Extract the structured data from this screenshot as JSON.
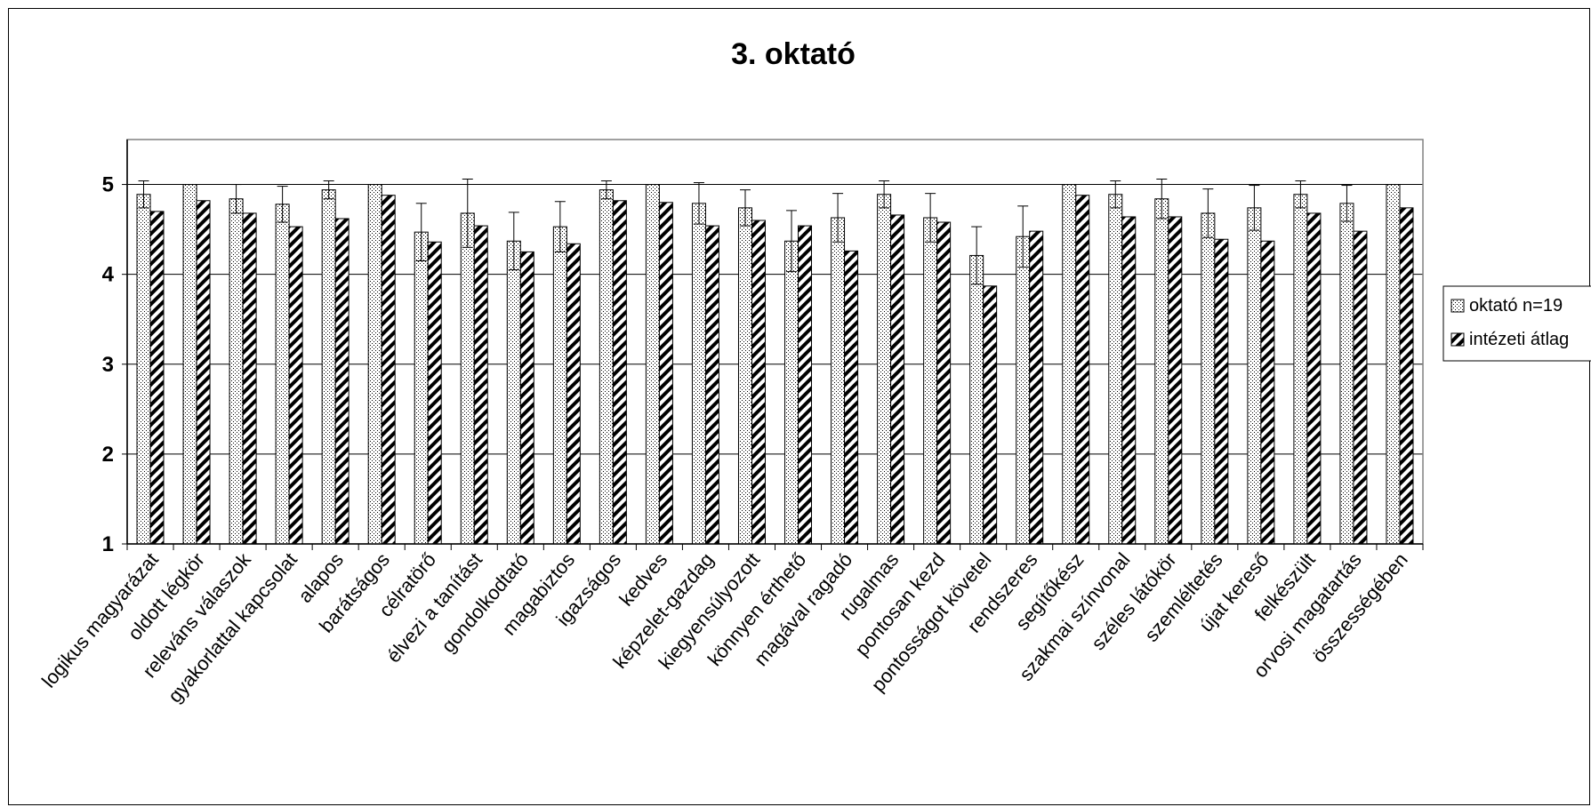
{
  "chart_data": {
    "type": "bar",
    "title": "3. oktató",
    "xlabel": "",
    "ylabel": "",
    "ylim": [
      1,
      5.5
    ],
    "yticks": [
      1,
      2,
      3,
      4,
      5
    ],
    "grid": true,
    "legend_position": "right",
    "categories": [
      "logikus magyarázat",
      "oldott légkör",
      "releváns válaszok",
      "gyakorlattal kapcsolat",
      "alapos",
      "barátságos",
      "célratörő",
      "élvezi a tanítást",
      "gondolkodtató",
      "magabiztos",
      "igazságos",
      "kedves",
      "képzelet-gazdag",
      "kiegyensúlyozott",
      "könnyen érthető",
      "magával ragadó",
      "rugalmas",
      "pontosan kezd",
      "pontosságot követel",
      "rendszeres",
      "segítőkész",
      "szakmai színvonal",
      "széles látókör",
      "szemléltetés",
      "újat kereső",
      "felkészült",
      "orvosi magatartás",
      "összességében"
    ],
    "series": [
      {
        "name": "oktató n=19",
        "pattern": "dots",
        "values": [
          4.89,
          5.0,
          4.84,
          4.78,
          4.94,
          5.0,
          4.47,
          4.68,
          4.37,
          4.53,
          4.94,
          5.0,
          4.79,
          4.74,
          4.37,
          4.63,
          4.89,
          4.63,
          4.21,
          4.42,
          5.0,
          4.89,
          4.84,
          4.68,
          4.74,
          4.89,
          4.79,
          5.0
        ],
        "error": [
          0.15,
          0,
          0.16,
          0.2,
          0.1,
          0,
          0.32,
          0.38,
          0.32,
          0.28,
          0.1,
          0,
          0.23,
          0.2,
          0.34,
          0.27,
          0.15,
          0.27,
          0.32,
          0.34,
          0,
          0.15,
          0.22,
          0.27,
          0.25,
          0.15,
          0.2,
          0
        ]
      },
      {
        "name": "intézeti átlag",
        "pattern": "diagonal",
        "values": [
          4.7,
          4.82,
          4.68,
          4.53,
          4.62,
          4.88,
          4.36,
          4.54,
          4.25,
          4.34,
          4.82,
          4.8,
          4.54,
          4.6,
          4.54,
          4.26,
          4.66,
          4.58,
          3.87,
          4.48,
          4.88,
          4.64,
          4.64,
          4.39,
          4.37,
          4.68,
          4.48,
          4.74
        ]
      }
    ],
    "colors": {
      "bar_fill": "#ffffff",
      "bar_stroke": "#000000",
      "grid": "#000000",
      "plot_border": "#808080"
    }
  }
}
